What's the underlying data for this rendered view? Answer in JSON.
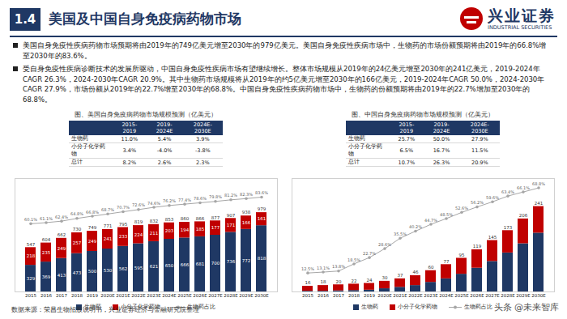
{
  "header": {
    "section": "1.4",
    "title": "美国及中国自身免疫病药物市场",
    "logo_cn": "兴业证券",
    "logo_en": "INDUSTRIAL SECURITIES"
  },
  "bullets": [
    "美国自身免疫性疾病药物市场预期将由2019年的749亿美元增至2030年的979亿美元。美国自身免疫性疾病市场中，生物药的市场份额预期将由2019年的66.8%增至2030年的83.6%。",
    "受自身免疫性疾病诊断技术的发展所驱动，中国自身免疫性疾病市场有望继续增长。整体市场规模从2019年的24亿美元增至2030年的241亿美元，2019-2024年CAGR 26.3%，2024-2030年CAGR 20.9%。其中生物药市场规模将从2019年的约5亿美元增至2030年的166亿美元，2019-2024年CAGR 50.0%，2024-2030年CAGR 27.9%，市场份额从2019年的22.7%增至2030年的68.8%。中国自身免疫性疾病药物市场中，生物药的份额预期将由2019年的22.7%增加至2030年的68.8%。"
  ],
  "chart_data": [
    {
      "type": "bar",
      "title": "图、美国自身免疫病药物市场规模预测（亿美元）",
      "stacked": true,
      "tick_labels": "x",
      "data_labels": true,
      "categories": [
        "2015",
        "2016",
        "2017",
        "2018",
        "2019",
        "2020E",
        "2021E",
        "2022E",
        "2023E",
        "2024E",
        "2025E",
        "2026E",
        "2027E",
        "2028E",
        "2029E",
        "2030E"
      ],
      "ylim": [
        0,
        1400
      ],
      "yticks": [],
      "y2lim": [
        0,
        100
      ],
      "y2ticks": [],
      "series": [
        {
          "name": "生物药",
          "color": "#1f3864",
          "data_labels": true,
          "values": [
            329,
            369,
            413,
            473,
            500,
            530,
            562,
            595,
            621,
            650,
            666,
            681,
            700,
            736,
            772,
            818
          ]
        },
        {
          "name": "小分子化学药物",
          "color": "#c00000",
          "data_labels": true,
          "values": [
            218,
            235,
            249,
            257,
            249,
            241,
            233,
            224,
            211,
            203,
            194,
            185,
            177,
            171,
            166,
            161
          ]
        },
        {
          "name": "生物药占比",
          "type": "line",
          "axis": "y2",
          "color": "#a6a6a6",
          "marker": "circle",
          "data_labels": true,
          "values": [
            60.1,
            61.1,
            62.4,
            64.8,
            66.8,
            68.7,
            70.7,
            72.6,
            74.6,
            76.2,
            77.4,
            78.6,
            79.8,
            81.2,
            82.3,
            83.6
          ],
          "value_labels": [
            "60.1%",
            "61.1%",
            "62.4%",
            "64.8%",
            "66.8%",
            "68.7%",
            "70.7%",
            "72.6%",
            "74.6%",
            "76.2%",
            "77.4%",
            "78.6%",
            "79.8%",
            "81.2%",
            "82.3%",
            "83.6%"
          ]
        }
      ],
      "totals": [
        547,
        604,
        662,
        730,
        749,
        771,
        795,
        819,
        832,
        853,
        860,
        866,
        877,
        907,
        938,
        979
      ],
      "table": {
        "columns": [
          "2015-2019",
          "2019-2024E",
          "2024E-2030E"
        ],
        "rows": [
          [
            "生物药",
            "11.0%",
            "5.4%",
            "3.9%"
          ],
          [
            "小分子化学药物",
            "3.4%",
            "-4.0%",
            "-3.8%"
          ],
          [
            "总计",
            "8.2%",
            "2.6%",
            "2.3%"
          ]
        ]
      }
    },
    {
      "type": "bar",
      "title": "图、中国自身免疫病药物市场规模预测（亿美元）",
      "stacked": true,
      "tick_labels": "x",
      "data_labels": true,
      "categories": [
        "2015",
        "2016",
        "2017",
        "2018",
        "2019",
        "2020E",
        "2021E",
        "2022E",
        "2023E",
        "2024E",
        "2025E",
        "2026E",
        "2027E",
        "2028E",
        "2029E",
        "2030E"
      ],
      "ylim": [
        0,
        320
      ],
      "yticks": [],
      "y2lim": [
        0,
        75
      ],
      "y2ticks": [],
      "series": [
        {
          "name": "生物药",
          "color": "#1f3864",
          "data_labels": false,
          "values": [
            2,
            2,
            3,
            4,
            5,
            9,
            13,
            18,
            27,
            37,
            50,
            67,
            86,
            110,
            136,
            166
          ]
        },
        {
          "name": "小分子化学药物",
          "color": "#c00000",
          "data_labels": false,
          "values": [
            14,
            16,
            17,
            18,
            19,
            21,
            24,
            28,
            33,
            40,
            45,
            52,
            59,
            63,
            70,
            75
          ]
        },
        {
          "name": "生物药占比",
          "type": "line",
          "axis": "y2",
          "color": "#a6a6a6",
          "marker": "circle",
          "data_labels": true,
          "values": [
            12.5,
            13.1,
            13.8,
            18.5,
            22.7,
            28.6,
            35.5,
            40.2,
            44.7,
            48.5,
            52.6,
            56.2,
            59.6,
            63.4,
            66.1,
            68.8
          ],
          "value_labels": [
            "12.5%",
            "13.1%",
            "13.8%",
            "18.5%",
            "22.7%",
            "28.6%",
            "35.5%",
            "40.2%",
            "44.7%",
            "48.5%",
            "52.6%",
            "56.2%",
            "59.6%",
            "63.4%",
            "66.1%",
            "68.8%"
          ]
        }
      ],
      "totals": [
        16,
        18,
        20,
        22,
        24,
        30,
        37,
        46,
        60,
        77,
        95,
        119,
        145,
        173,
        206,
        241
      ],
      "table": {
        "columns": [
          "2015-2019",
          "2019-2024E",
          "2024E-2030E"
        ],
        "rows": [
          [
            "生物药",
            "25.7%",
            "50.0%",
            "27.9%"
          ],
          [
            "小分子化学药物",
            "6.5%",
            "16.7%",
            "11.5%"
          ],
          [
            "总计",
            "10.7%",
            "26.3%",
            "20.9%"
          ]
        ]
      }
    }
  ],
  "source": "数据来源：荣昌生物招股说明书，兴业证券经济与金融研究院整理",
  "watermark": "头条 @未来智库"
}
